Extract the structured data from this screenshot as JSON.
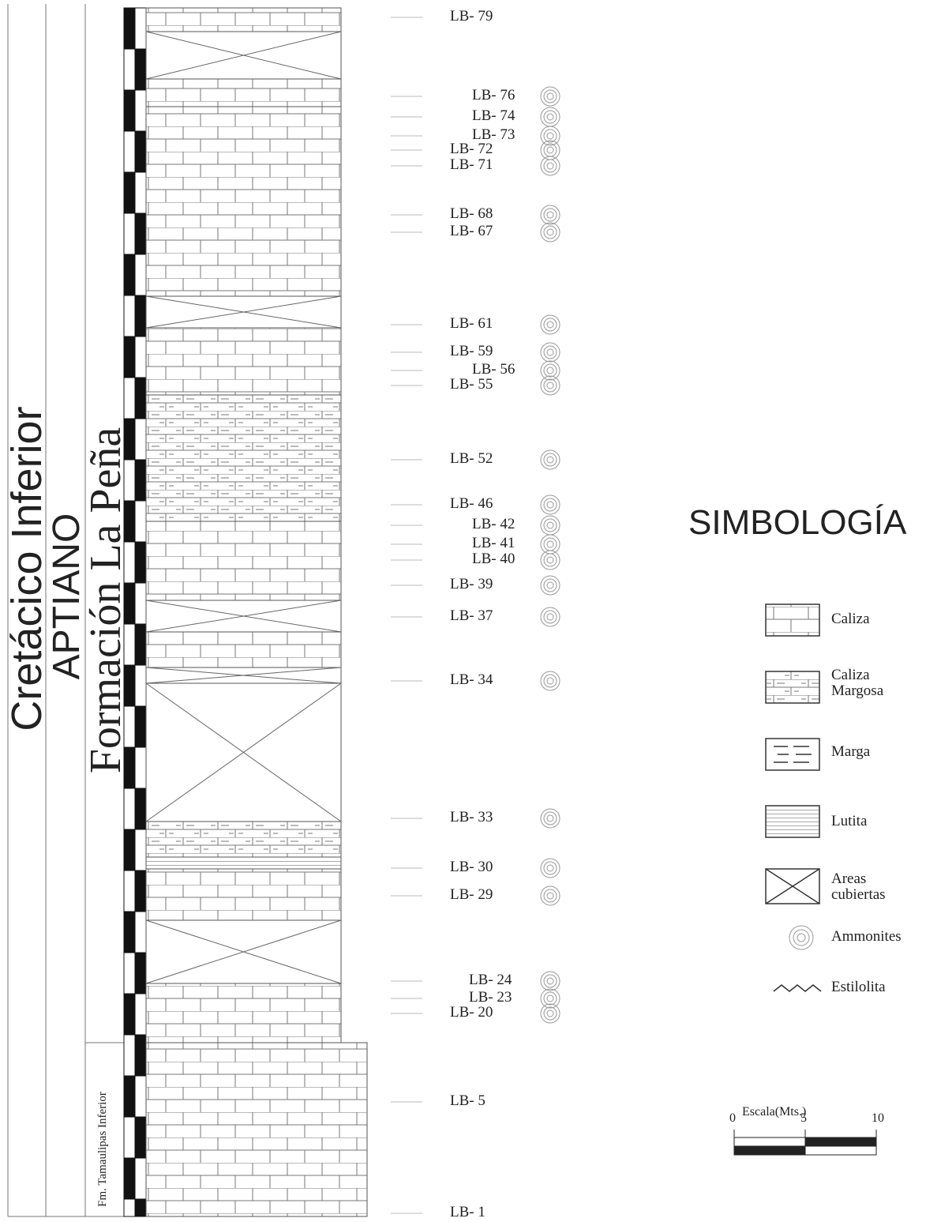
{
  "columns": {
    "system": "Cretácico Inferior",
    "stage": "APTIANO",
    "formation": "Formación La Peña",
    "lower_formation": "Fm. Tamaulipas Inferior"
  },
  "samples": [
    "LB- 79",
    "LB- 76",
    "LB- 74",
    "LB- 73",
    "LB- 72",
    "LB- 71",
    "LB- 68",
    "LB- 67",
    "LB- 61",
    "LB- 59",
    "LB- 56",
    "LB- 55",
    "LB- 52",
    "LB- 46",
    "LB- 42",
    "LB- 41",
    "LB- 40",
    "LB- 39",
    "LB- 37",
    "LB- 34",
    "LB- 33",
    "LB- 30",
    "LB- 29",
    "LB- 24",
    "LB- 23",
    "LB- 20",
    "LB- 5",
    "LB- 1"
  ],
  "legend": {
    "title": "SIMBOLOGÍA",
    "items": [
      "Caliza",
      "Caliza Margosa",
      "Marga",
      "Lutita",
      "Areas cubiertas",
      "Ammonites",
      "Estilolita"
    ]
  },
  "scale": {
    "title": "Escala(Mts.)",
    "ticks": [
      0,
      5,
      10
    ]
  }
}
